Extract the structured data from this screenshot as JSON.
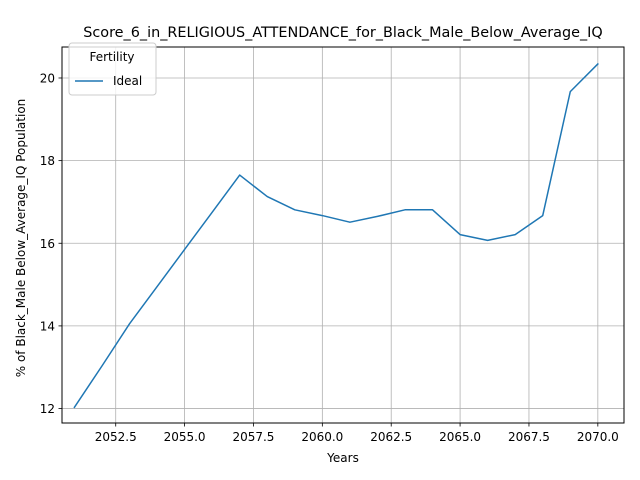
{
  "chart_data": {
    "type": "line",
    "title": "Score_6_in_RELIGIOUS_ATTENDANCE_for_Black_Male_Below_Average_IQ",
    "xlabel": "Years",
    "ylabel": "% of Black_Male Below_Average_IQ Population",
    "xlim": [
      2050.55,
      2070.95
    ],
    "ylim": [
      11.65,
      20.75
    ],
    "x_ticks": [
      2052.5,
      2055.0,
      2057.5,
      2060.0,
      2062.5,
      2065.0,
      2067.5,
      2070.0
    ],
    "x_tick_labels": [
      "2052.5",
      "2055.0",
      "2057.5",
      "2060.0",
      "2062.5",
      "2065.0",
      "2067.5",
      "2070.0"
    ],
    "y_ticks": [
      12,
      14,
      16,
      18,
      20
    ],
    "y_tick_labels": [
      "12",
      "14",
      "16",
      "18",
      "20"
    ],
    "grid": true,
    "legend": {
      "title": "Fertility",
      "placement": "top-left"
    },
    "series": [
      {
        "name": "Ideal",
        "color": "#1f77b4",
        "x": [
          2051,
          2052,
          2053,
          2054,
          2055,
          2056,
          2057,
          2058,
          2059,
          2060,
          2061,
          2062,
          2063,
          2064,
          2065,
          2066,
          2067,
          2068,
          2069,
          2070
        ],
        "y": [
          12.03,
          13.03,
          14.05,
          14.95,
          15.85,
          16.75,
          17.65,
          17.13,
          16.81,
          16.67,
          16.51,
          16.65,
          16.81,
          16.81,
          16.21,
          16.07,
          16.21,
          16.67,
          19.67,
          20.34
        ]
      }
    ]
  }
}
